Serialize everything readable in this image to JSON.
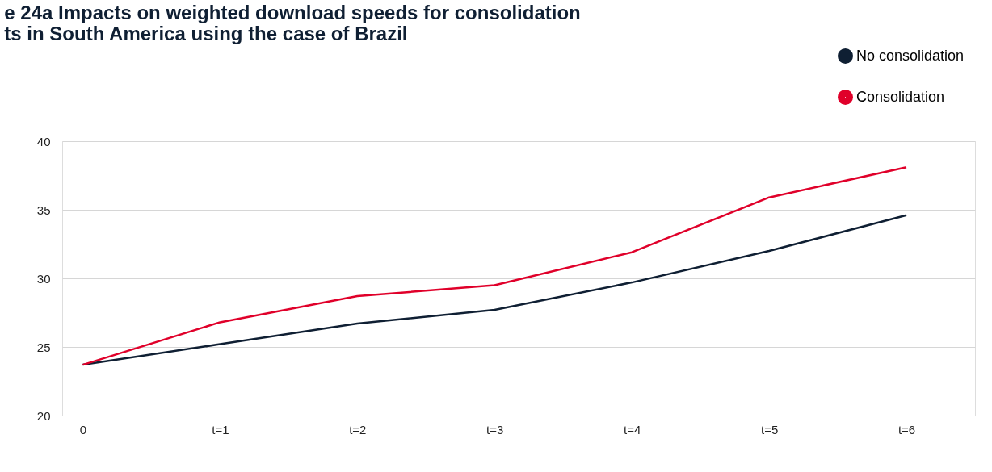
{
  "chart_data": {
    "type": "line",
    "title": [
      "e 24a Impacts on weighted download speeds for consolidation",
      "ts in South America using the case of Brazil"
    ],
    "categories": [
      "0",
      "t=1",
      "t=2",
      "t=3",
      "t=4",
      "t=5",
      "t=6"
    ],
    "series": [
      {
        "name": "No consolidation",
        "color": "#0f1f33",
        "values": [
          23.7,
          25.2,
          26.7,
          27.7,
          29.7,
          32.0,
          34.6
        ]
      },
      {
        "name": "Consolidation",
        "color": "#e0002a",
        "values": [
          23.7,
          26.8,
          28.7,
          29.5,
          31.9,
          35.9,
          38.1
        ]
      }
    ],
    "ylim": [
      20,
      40
    ],
    "yticks": [
      20,
      25,
      30,
      35,
      40
    ],
    "grid": "y",
    "legend": "top right",
    "marker": "none",
    "line_style": "solid"
  }
}
